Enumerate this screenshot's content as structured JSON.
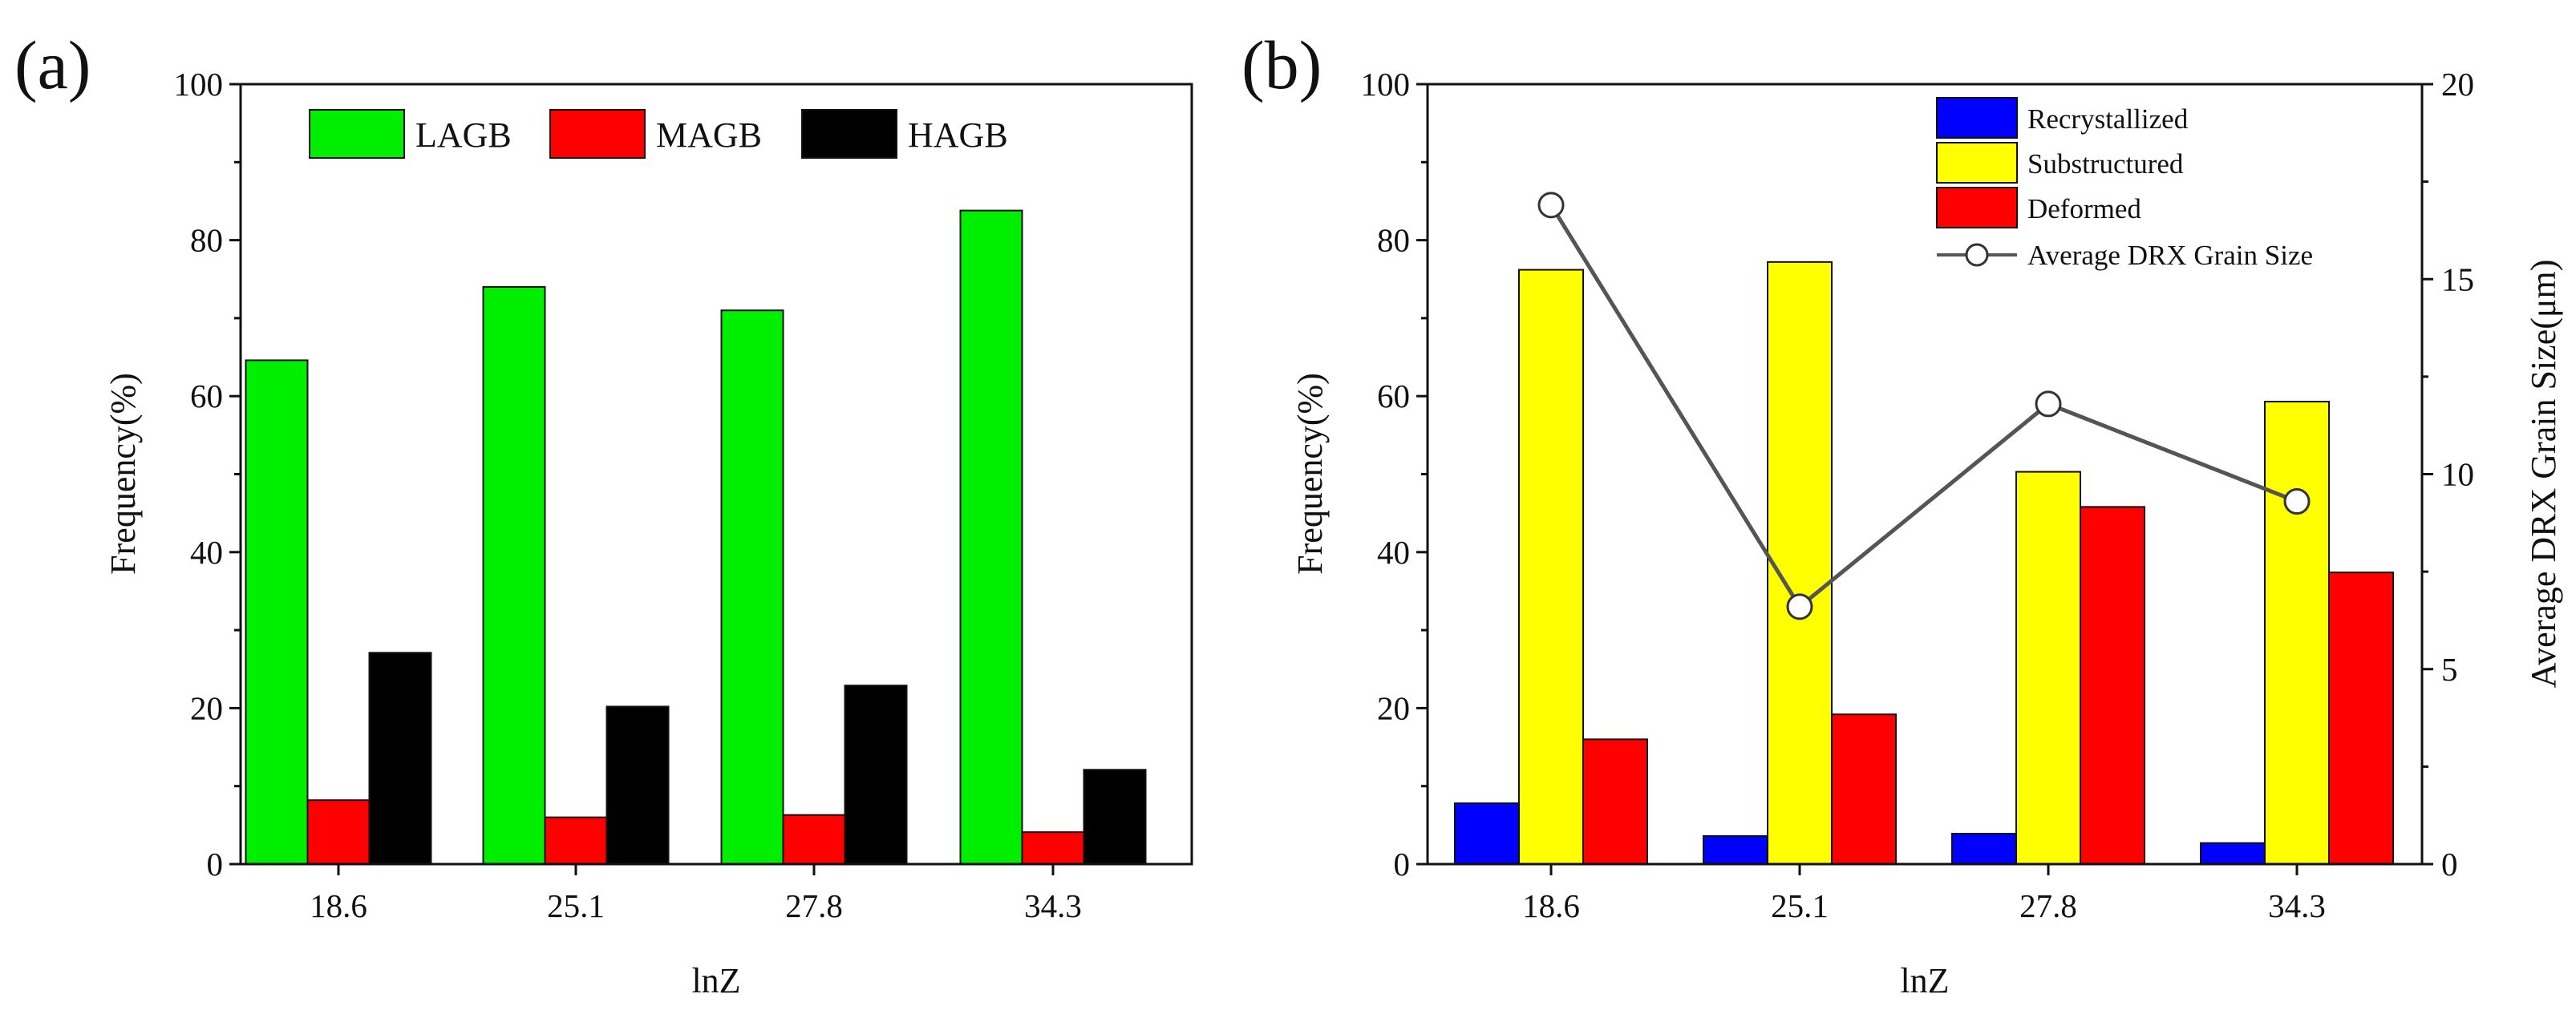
{
  "chart_data": [
    {
      "panel_label": "(a)",
      "type": "bar",
      "categories": [
        "18.6",
        "25.1",
        "27.8",
        "34.3"
      ],
      "series": [
        {
          "name": "LAGB",
          "color": "#00ee00",
          "values": [
            64.6,
            74.0,
            71.0,
            83.8
          ]
        },
        {
          "name": "MAGB",
          "color": "#ff0000",
          "values": [
            8.2,
            6.0,
            6.3,
            4.1
          ]
        },
        {
          "name": "HAGB",
          "color": "#000000",
          "values": [
            27.1,
            20.2,
            22.9,
            12.1
          ]
        }
      ],
      "xlabel": "lnZ",
      "ylabel": "Frequency(%)",
      "ylim": [
        0,
        100
      ],
      "yticks": [
        "0",
        "20",
        "40",
        "60",
        "80",
        "100"
      ],
      "legend": "top, horizontal"
    },
    {
      "panel_label": "(b)",
      "type": "bar",
      "categories": [
        "18.6",
        "25.1",
        "27.8",
        "34.3"
      ],
      "series": [
        {
          "name": "Recrystallized",
          "color": "#0000ff",
          "values": [
            7.8,
            3.6,
            3.9,
            2.7
          ]
        },
        {
          "name": "Substructured",
          "color": "#ffff00",
          "values": [
            76.2,
            77.2,
            50.3,
            59.3
          ]
        },
        {
          "name": "Deformed",
          "color": "#ff0000",
          "values": [
            16.0,
            19.2,
            45.8,
            37.4
          ]
        }
      ],
      "line_series": {
        "name": "Average DRX Grain Size",
        "color": "#555555",
        "axis": "right",
        "values": [
          16.9,
          6.6,
          11.8,
          9.3
        ]
      },
      "xlabel": "lnZ",
      "ylabel": "Frequency(%)",
      "ylabel_right": "Average DRX Grain Size(μm)",
      "ylim": [
        0,
        100
      ],
      "ylim_right": [
        0,
        20
      ],
      "yticks": [
        "0",
        "20",
        "40",
        "60",
        "80",
        "100"
      ],
      "yticks_right": [
        "0",
        "5",
        "10",
        "15",
        "20"
      ],
      "legend": "top-right"
    }
  ]
}
